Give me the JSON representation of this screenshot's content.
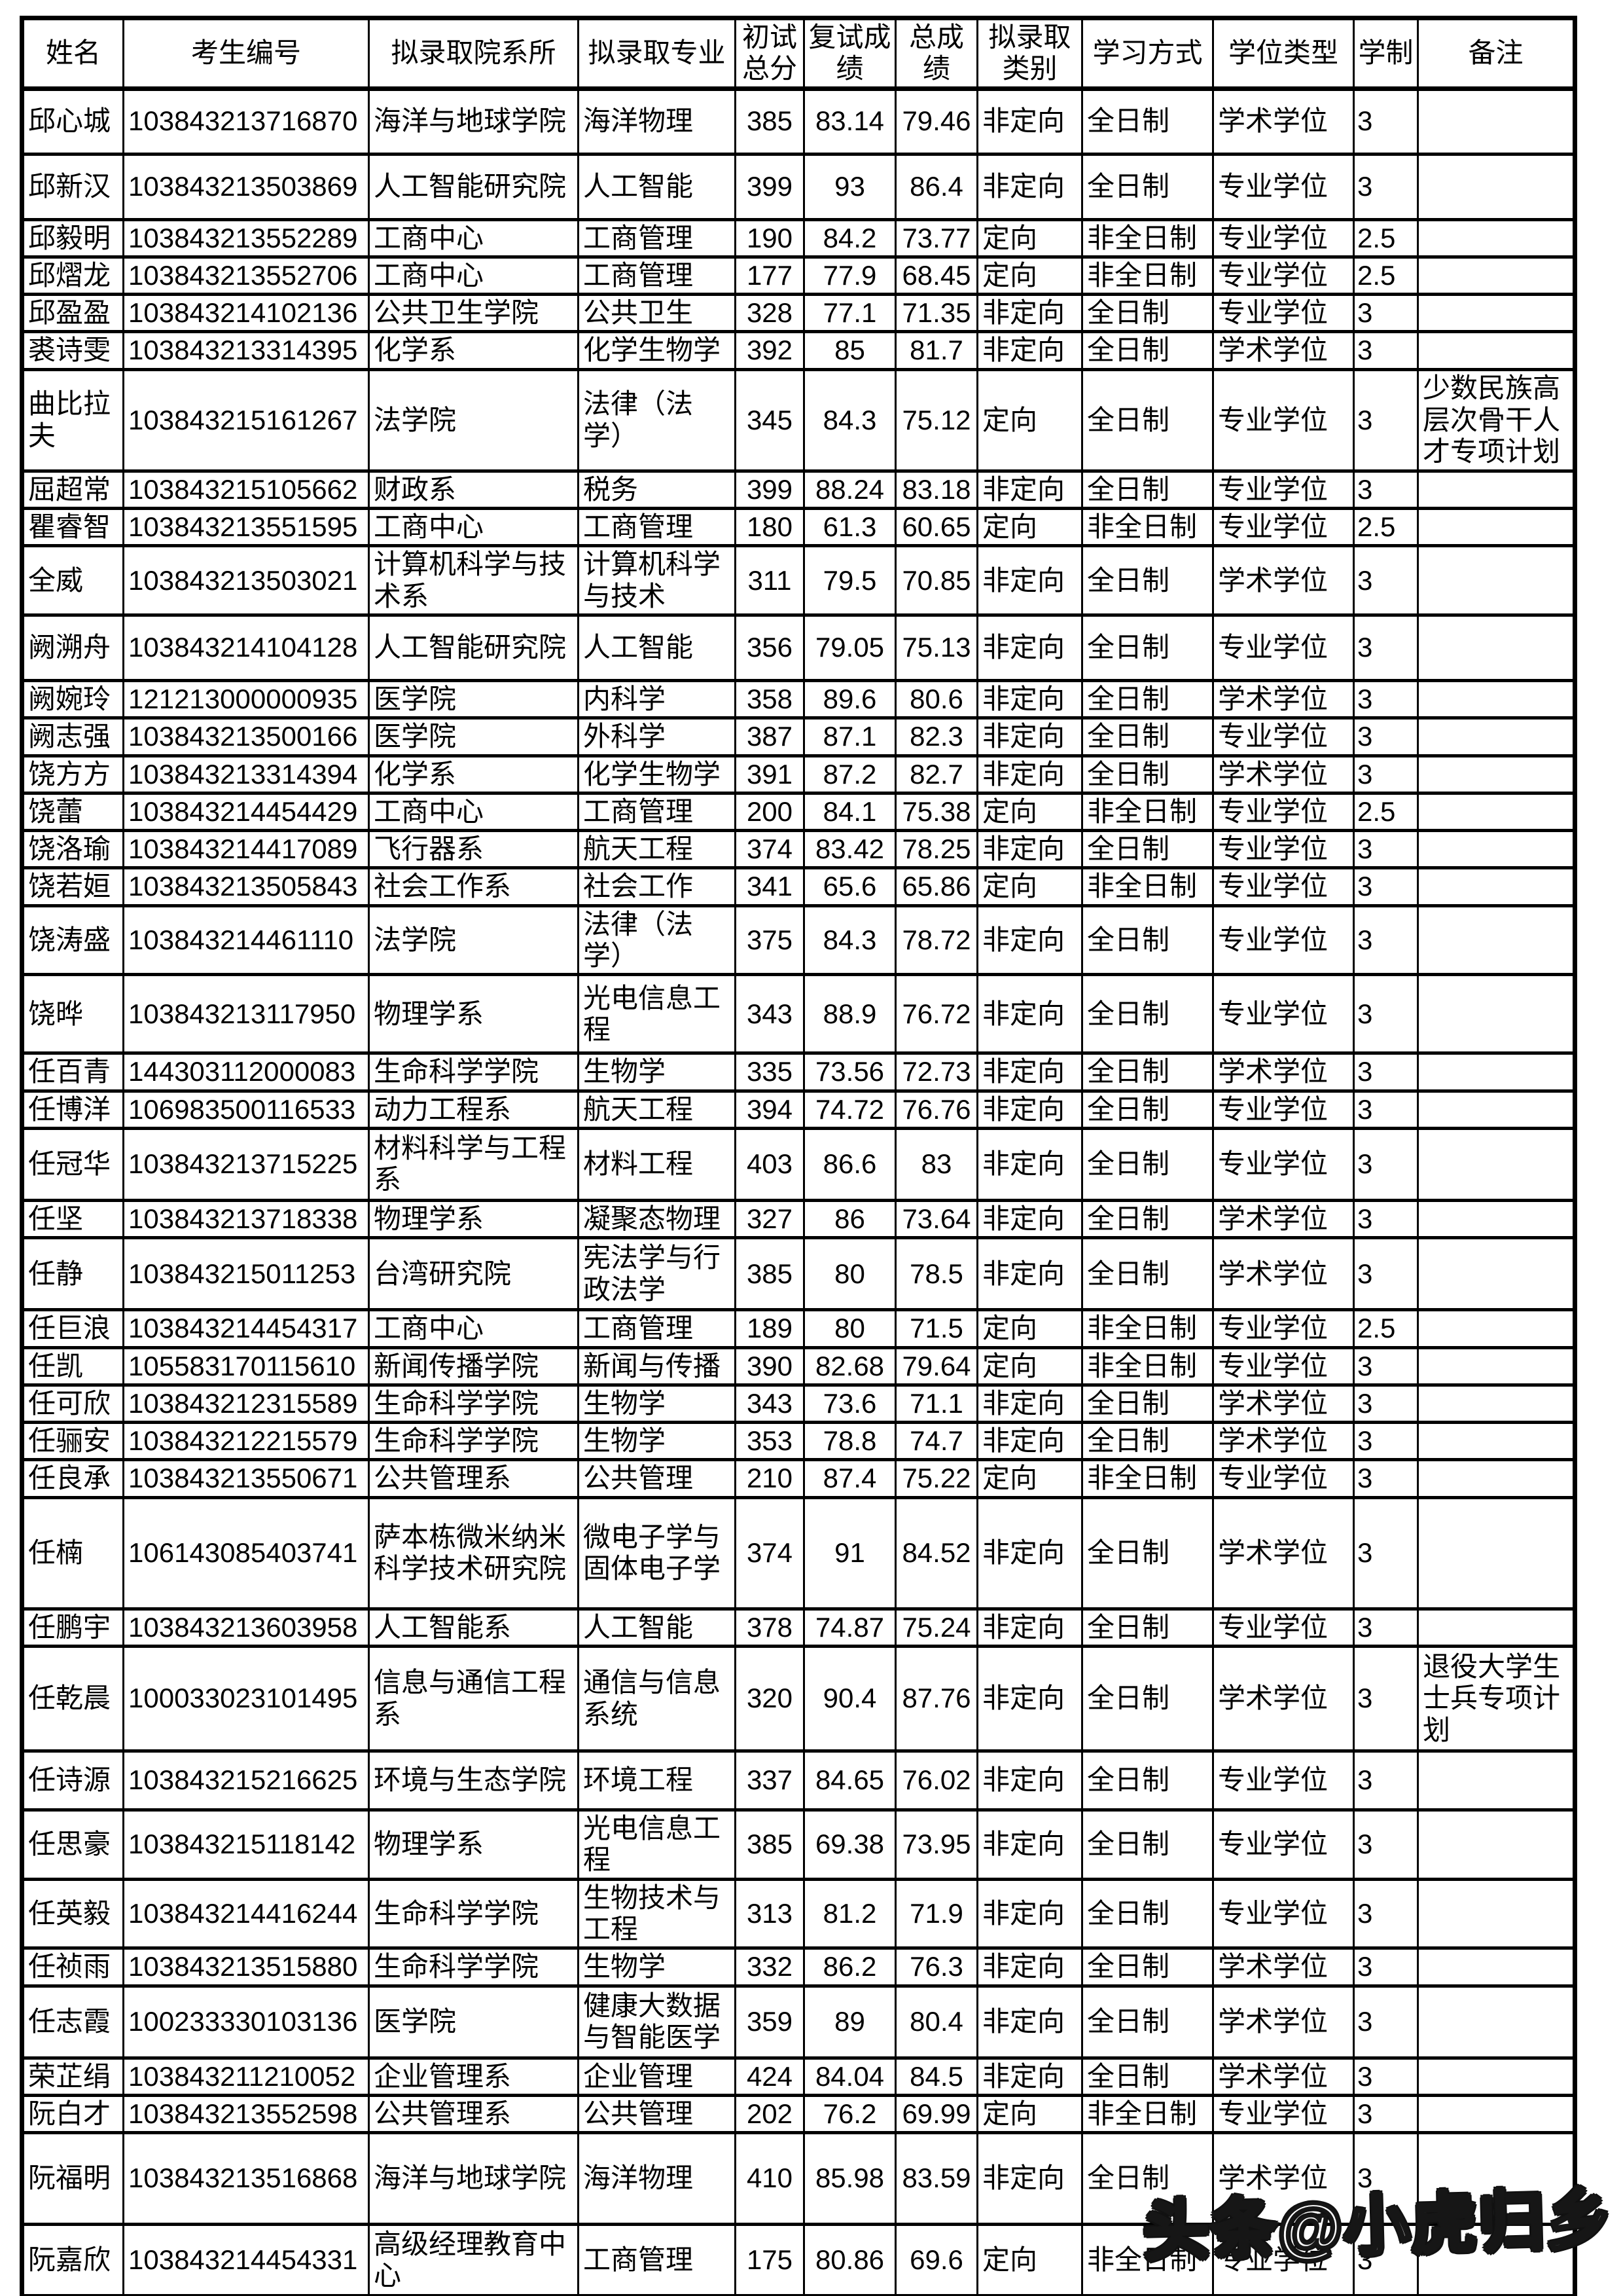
{
  "colors": {
    "text": "#000000",
    "background": "#ffffff",
    "grid": "#000000"
  },
  "table": {
    "headers": [
      "姓名",
      "考生编号",
      "拟录取院系所",
      "拟录取专业",
      "初试总分",
      "复试成绩",
      "总成绩",
      "拟录取类别",
      "学习方式",
      "学位类型",
      "学制",
      "备注"
    ],
    "rows": [
      [
        "邱心城",
        "103843213716870",
        "海洋与地球学院",
        "海洋物理",
        "385",
        "83.14",
        "79.46",
        "非定向",
        "全日制",
        "学术学位",
        "3",
        ""
      ],
      [
        "邱新汉",
        "103843213503869",
        "人工智能研究院",
        "人工智能",
        "399",
        "93",
        "86.4",
        "非定向",
        "全日制",
        "专业学位",
        "3",
        ""
      ],
      [
        "邱毅明",
        "103843213552289",
        "工商中心",
        "工商管理",
        "190",
        "84.2",
        "73.77",
        "定向",
        "非全日制",
        "专业学位",
        "2.5",
        ""
      ],
      [
        "邱熠龙",
        "103843213552706",
        "工商中心",
        "工商管理",
        "177",
        "77.9",
        "68.45",
        "定向",
        "非全日制",
        "专业学位",
        "2.5",
        ""
      ],
      [
        "邱盈盈",
        "103843214102136",
        "公共卫生学院",
        "公共卫生",
        "328",
        "77.1",
        "71.35",
        "非定向",
        "全日制",
        "专业学位",
        "3",
        ""
      ],
      [
        "裘诗雯",
        "103843213314395",
        "化学系",
        "化学生物学",
        "392",
        "85",
        "81.7",
        "非定向",
        "全日制",
        "学术学位",
        "3",
        ""
      ],
      [
        "曲比拉夫",
        "103843215161267",
        "法学院",
        "法律（法学）",
        "345",
        "84.3",
        "75.12",
        "定向",
        "全日制",
        "专业学位",
        "3",
        "少数民族高层次骨干人才专项计划"
      ],
      [
        "屈超常",
        "103843215105662",
        "财政系",
        "税务",
        "399",
        "88.24",
        "83.18",
        "非定向",
        "全日制",
        "专业学位",
        "3",
        ""
      ],
      [
        "瞿睿智",
        "103843213551595",
        "工商中心",
        "工商管理",
        "180",
        "61.3",
        "60.65",
        "定向",
        "非全日制",
        "专业学位",
        "2.5",
        ""
      ],
      [
        "全威",
        "103843213503021",
        "计算机科学与技术系",
        "计算机科学与技术",
        "311",
        "79.5",
        "70.85",
        "非定向",
        "全日制",
        "学术学位",
        "3",
        ""
      ],
      [
        "阙溯舟",
        "103843214104128",
        "人工智能研究院",
        "人工智能",
        "356",
        "79.05",
        "75.13",
        "非定向",
        "全日制",
        "专业学位",
        "3",
        ""
      ],
      [
        "阙婉玲",
        "121213000000935",
        "医学院",
        "内科学",
        "358",
        "89.6",
        "80.6",
        "非定向",
        "全日制",
        "学术学位",
        "3",
        ""
      ],
      [
        "阙志强",
        "103843213500166",
        "医学院",
        "外科学",
        "387",
        "87.1",
        "82.3",
        "非定向",
        "全日制",
        "专业学位",
        "3",
        ""
      ],
      [
        "饶方方",
        "103843213314394",
        "化学系",
        "化学生物学",
        "391",
        "87.2",
        "82.7",
        "非定向",
        "全日制",
        "学术学位",
        "3",
        ""
      ],
      [
        "饶蕾",
        "103843214454429",
        "工商中心",
        "工商管理",
        "200",
        "84.1",
        "75.38",
        "定向",
        "非全日制",
        "专业学位",
        "2.5",
        ""
      ],
      [
        "饶洛瑜",
        "103843214417089",
        "飞行器系",
        "航天工程",
        "374",
        "83.42",
        "78.25",
        "非定向",
        "全日制",
        "专业学位",
        "3",
        ""
      ],
      [
        "饶若姮",
        "103843213505843",
        "社会工作系",
        "社会工作",
        "341",
        "65.6",
        "65.86",
        "定向",
        "非全日制",
        "专业学位",
        "3",
        ""
      ],
      [
        "饶涛盛",
        "103843214461110",
        "法学院",
        "法律（法学）",
        "375",
        "84.3",
        "78.72",
        "非定向",
        "全日制",
        "专业学位",
        "3",
        ""
      ],
      [
        "饶晔",
        "103843213117950",
        "物理学系",
        "光电信息工程",
        "343",
        "88.9",
        "76.72",
        "非定向",
        "全日制",
        "专业学位",
        "3",
        ""
      ],
      [
        "任百青",
        "144303112000083",
        "生命科学学院",
        "生物学",
        "335",
        "73.56",
        "72.73",
        "非定向",
        "全日制",
        "学术学位",
        "3",
        ""
      ],
      [
        "任博洋",
        "106983500116533",
        "动力工程系",
        "航天工程",
        "394",
        "74.72",
        "76.76",
        "非定向",
        "全日制",
        "专业学位",
        "3",
        ""
      ],
      [
        "任冠华",
        "103843213715225",
        "材料科学与工程系",
        "材料工程",
        "403",
        "86.6",
        "83",
        "非定向",
        "全日制",
        "专业学位",
        "3",
        ""
      ],
      [
        "任坚",
        "103843213718338",
        "物理学系",
        "凝聚态物理",
        "327",
        "86",
        "73.64",
        "非定向",
        "全日制",
        "学术学位",
        "3",
        ""
      ],
      [
        "任静",
        "103843215011253",
        "台湾研究院",
        "宪法学与行政法学",
        "385",
        "80",
        "78.5",
        "非定向",
        "全日制",
        "学术学位",
        "3",
        ""
      ],
      [
        "任巨浪",
        "103843214454317",
        "工商中心",
        "工商管理",
        "189",
        "80",
        "71.5",
        "定向",
        "非全日制",
        "专业学位",
        "2.5",
        ""
      ],
      [
        "任凯",
        "105583170115610",
        "新闻传播学院",
        "新闻与传播",
        "390",
        "82.68",
        "79.64",
        "定向",
        "非全日制",
        "专业学位",
        "3",
        ""
      ],
      [
        "任可欣",
        "103843212315589",
        "生命科学学院",
        "生物学",
        "343",
        "73.6",
        "71.1",
        "非定向",
        "全日制",
        "学术学位",
        "3",
        ""
      ],
      [
        "任骊安",
        "103843212215579",
        "生命科学学院",
        "生物学",
        "353",
        "78.8",
        "74.7",
        "非定向",
        "全日制",
        "学术学位",
        "3",
        ""
      ],
      [
        "任良承",
        "103843213550671",
        "公共管理系",
        "公共管理",
        "210",
        "87.4",
        "75.22",
        "定向",
        "非全日制",
        "专业学位",
        "3",
        ""
      ],
      [
        "任楠",
        "106143085403741",
        "萨本栋微米纳米科学技术研究院",
        "微电子学与固体电子学",
        "374",
        "91",
        "84.52",
        "非定向",
        "全日制",
        "学术学位",
        "3",
        ""
      ],
      [
        "任鹏宇",
        "103843213603958",
        "人工智能系",
        "人工智能",
        "378",
        "74.87",
        "75.24",
        "非定向",
        "全日制",
        "专业学位",
        "3",
        ""
      ],
      [
        "任乾晨",
        "100033023101495",
        "信息与通信工程系",
        "通信与信息系统",
        "320",
        "90.4",
        "87.76",
        "非定向",
        "全日制",
        "学术学位",
        "3",
        "退役大学生士兵专项计划"
      ],
      [
        "任诗源",
        "103843215216625",
        "环境与生态学院",
        "环境工程",
        "337",
        "84.65",
        "76.02",
        "非定向",
        "全日制",
        "专业学位",
        "3",
        ""
      ],
      [
        "任思豪",
        "103843215118142",
        "物理学系",
        "光电信息工程",
        "385",
        "69.38",
        "73.95",
        "非定向",
        "全日制",
        "专业学位",
        "3",
        ""
      ],
      [
        "任英毅",
        "103843214416244",
        "生命科学学院",
        "生物技术与工程",
        "313",
        "81.2",
        "71.9",
        "非定向",
        "全日制",
        "专业学位",
        "3",
        ""
      ],
      [
        "任祯雨",
        "103843213515880",
        "生命科学学院",
        "生物学",
        "332",
        "86.2",
        "76.3",
        "非定向",
        "全日制",
        "学术学位",
        "3",
        ""
      ],
      [
        "任志霞",
        "100233330103136",
        "医学院",
        "健康大数据与智能医学",
        "359",
        "89",
        "80.4",
        "非定向",
        "全日制",
        "学术学位",
        "3",
        ""
      ],
      [
        "荣芷绢",
        "103843211210052",
        "企业管理系",
        "企业管理",
        "424",
        "84.04",
        "84.5",
        "非定向",
        "全日制",
        "学术学位",
        "3",
        ""
      ],
      [
        "阮白才",
        "103843213552598",
        "公共管理系",
        "公共管理",
        "202",
        "76.2",
        "69.99",
        "定向",
        "非全日制",
        "专业学位",
        "3",
        ""
      ],
      [
        "阮福明",
        "103843213516868",
        "海洋与地球学院",
        "海洋物理",
        "410",
        "85.98",
        "83.59",
        "非定向",
        "全日制",
        "学术学位",
        "3",
        ""
      ],
      [
        "阮嘉欣",
        "103843214454331",
        "高级经理教育中心",
        "工商管理",
        "175",
        "80.86",
        "69.6",
        "定向",
        "非全日制",
        "专业学位",
        "3",
        ""
      ]
    ]
  },
  "watermark": {
    "text": "头条@小虎归乡"
  }
}
